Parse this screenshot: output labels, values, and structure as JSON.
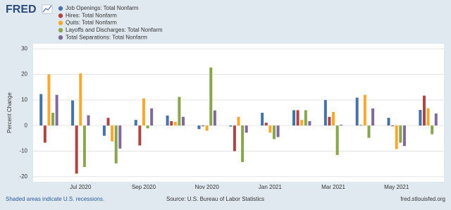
{
  "brand": "FRED",
  "chart_data": {
    "type": "bar",
    "y_label": "Percent Change",
    "categories": [
      null,
      "Jul 2020",
      null,
      "Sep 2020",
      null,
      "Nov 2020",
      null,
      "Jan 2021",
      null,
      "Mar 2021",
      null,
      "May 2021",
      null
    ],
    "series": [
      {
        "name": "Job Openings: Total Nonfarm",
        "color": "#4572a7",
        "values": [
          12.3,
          9.8,
          -4,
          2.2,
          3.9,
          -1.4,
          -0.4,
          5,
          6,
          10,
          10.9,
          3,
          6.1
        ]
      },
      {
        "name": "Hires: Total Nonfarm",
        "color": "#aa4643",
        "values": [
          -6.7,
          -18.8,
          3,
          -7.8,
          1.7,
          -0.3,
          -10,
          1.1,
          6,
          3.4,
          0.2,
          -0.3,
          11.7
        ]
      },
      {
        "name": "Quits: Total Nonfarm",
        "color": "#f8a830",
        "values": [
          20,
          20.4,
          -6.2,
          10.6,
          1.4,
          -2,
          3.4,
          -2.8,
          2.2,
          5.3,
          12,
          -9.2,
          6.7
        ]
      },
      {
        "name": "Layoffs and Discharges: Total Nonfarm",
        "color": "#89a54e",
        "values": [
          5,
          -16.2,
          -14.8,
          -1.1,
          11.2,
          22.7,
          -14.3,
          -5.3,
          6,
          -11.5,
          -4.8,
          -6.7,
          -3.4
        ]
      },
      {
        "name": "Total Separations: Total Nonfarm",
        "color": "#80699b",
        "values": [
          12,
          4,
          -9,
          6.7,
          3.4,
          5.9,
          -2.8,
          -4.5,
          1.7,
          0.3,
          6.7,
          -8,
          4.7
        ]
      }
    ],
    "ylim": [
      -22,
      32
    ],
    "yticks": [
      -20,
      -10,
      0,
      10,
      20,
      30
    ],
    "grid": true,
    "notes": [
      "Shaded areas indicate U.S. recessions.",
      "Source: U.S. Bureau of Labor Statistics",
      "fred.stlouisfed.org"
    ]
  }
}
